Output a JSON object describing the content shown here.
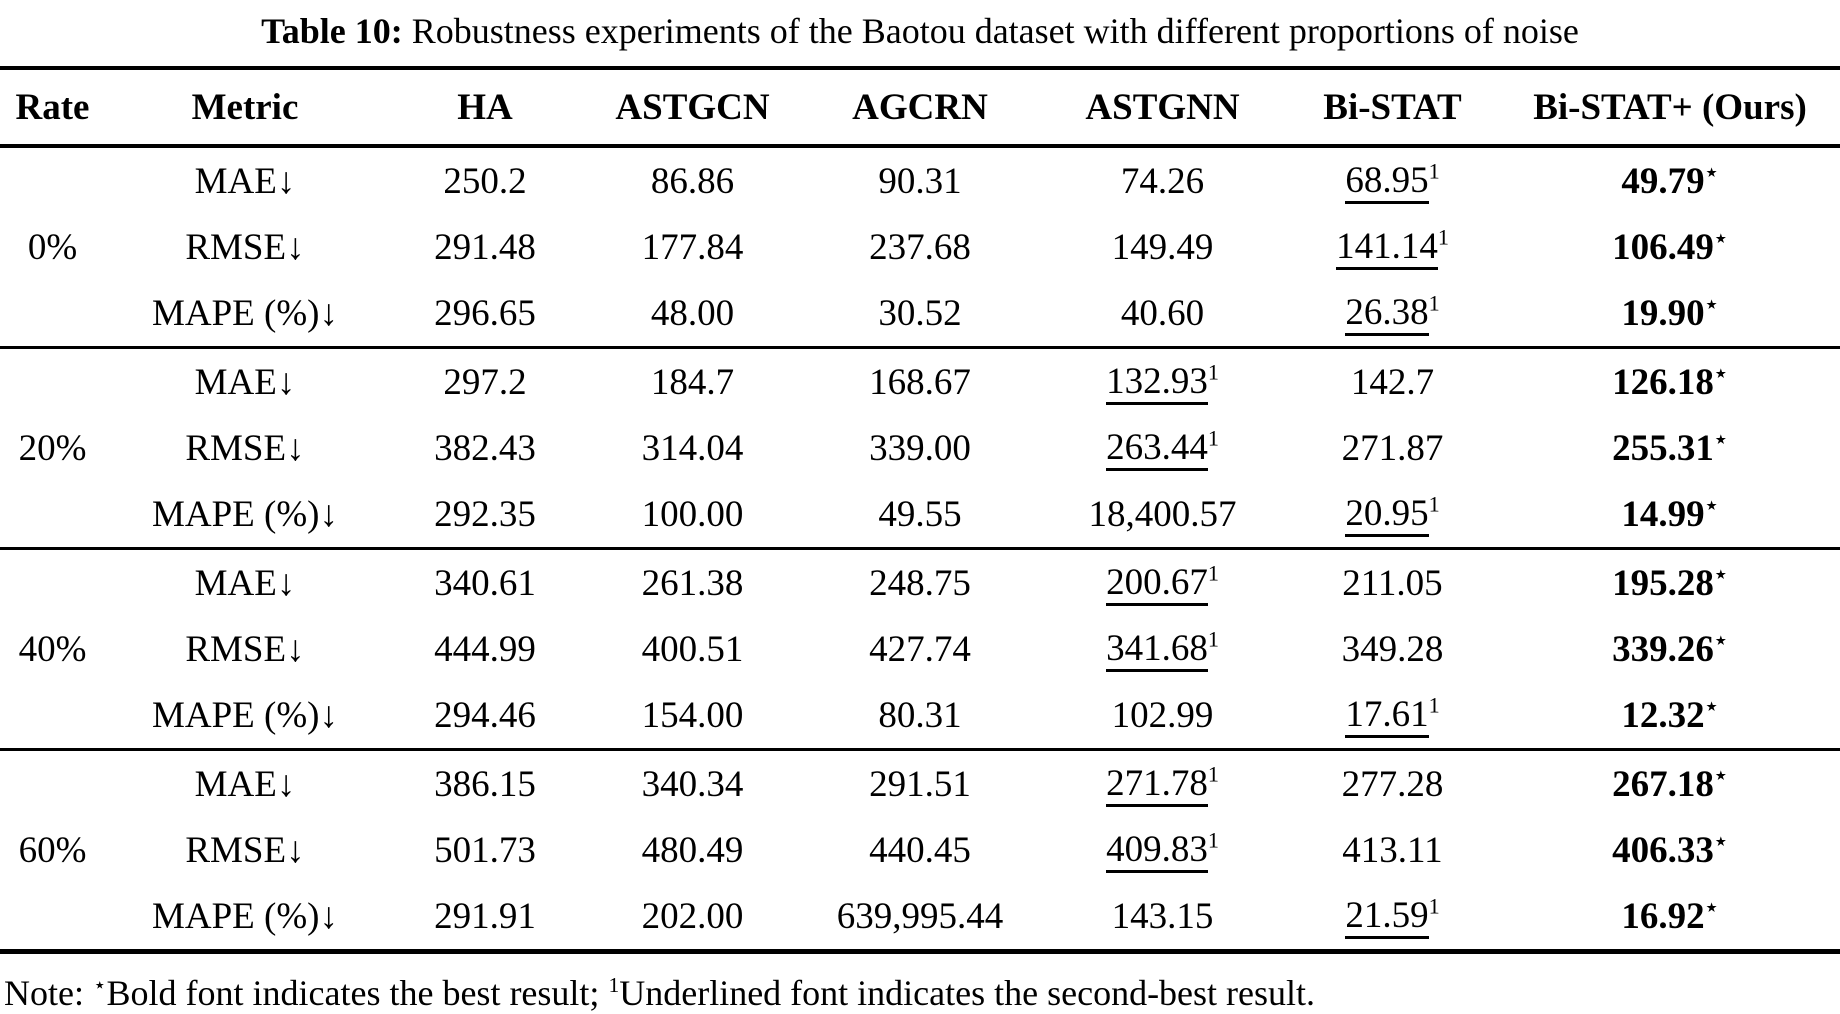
{
  "title": {
    "label": "Table 10:",
    "text": "Robustness experiments of the Baotou dataset with different proportions of noise"
  },
  "columns": [
    "Rate",
    "Metric",
    "HA",
    "ASTGCN",
    "AGCRN",
    "ASTGNN",
    "Bi-STAT",
    "Bi-STAT+ (Ours)"
  ],
  "marks": {
    "best_suffix": "⋆",
    "second_suffix": "1"
  },
  "groups": [
    {
      "rate": "0%",
      "rows": [
        {
          "metric": "MAE↓",
          "cells": [
            {
              "t": "250.2"
            },
            {
              "t": "86.86"
            },
            {
              "t": "90.31"
            },
            {
              "t": "74.26"
            },
            {
              "t": "68.95",
              "m": "second"
            },
            {
              "t": "49.79",
              "m": "best"
            }
          ]
        },
        {
          "metric": "RMSE↓",
          "cells": [
            {
              "t": "291.48"
            },
            {
              "t": "177.84"
            },
            {
              "t": "237.68"
            },
            {
              "t": "149.49"
            },
            {
              "t": "141.14",
              "m": "second"
            },
            {
              "t": "106.49",
              "m": "best"
            }
          ]
        },
        {
          "metric": "MAPE (%)↓",
          "cells": [
            {
              "t": "296.65"
            },
            {
              "t": "48.00"
            },
            {
              "t": "30.52"
            },
            {
              "t": "40.60"
            },
            {
              "t": "26.38",
              "m": "second"
            },
            {
              "t": "19.90",
              "m": "best"
            }
          ]
        }
      ]
    },
    {
      "rate": "20%",
      "rows": [
        {
          "metric": "MAE↓",
          "cells": [
            {
              "t": "297.2"
            },
            {
              "t": "184.7"
            },
            {
              "t": "168.67"
            },
            {
              "t": "132.93",
              "m": "second"
            },
            {
              "t": "142.7"
            },
            {
              "t": "126.18",
              "m": "best"
            }
          ]
        },
        {
          "metric": "RMSE↓",
          "cells": [
            {
              "t": "382.43"
            },
            {
              "t": "314.04"
            },
            {
              "t": "339.00"
            },
            {
              "t": "263.44",
              "m": "second"
            },
            {
              "t": "271.87"
            },
            {
              "t": "255.31",
              "m": "best"
            }
          ]
        },
        {
          "metric": "MAPE (%)↓",
          "cells": [
            {
              "t": "292.35"
            },
            {
              "t": "100.00"
            },
            {
              "t": "49.55"
            },
            {
              "t": "18,400.57"
            },
            {
              "t": "20.95",
              "m": "second"
            },
            {
              "t": "14.99",
              "m": "best"
            }
          ]
        }
      ]
    },
    {
      "rate": "40%",
      "rows": [
        {
          "metric": "MAE↓",
          "cells": [
            {
              "t": "340.61"
            },
            {
              "t": "261.38"
            },
            {
              "t": "248.75"
            },
            {
              "t": "200.67",
              "m": "second"
            },
            {
              "t": "211.05"
            },
            {
              "t": "195.28",
              "m": "best"
            }
          ]
        },
        {
          "metric": "RMSE↓",
          "cells": [
            {
              "t": "444.99"
            },
            {
              "t": "400.51"
            },
            {
              "t": "427.74"
            },
            {
              "t": "341.68",
              "m": "second"
            },
            {
              "t": "349.28"
            },
            {
              "t": "339.26",
              "m": "best"
            }
          ]
        },
        {
          "metric": "MAPE (%)↓",
          "cells": [
            {
              "t": "294.46"
            },
            {
              "t": "154.00"
            },
            {
              "t": "80.31"
            },
            {
              "t": "102.99"
            },
            {
              "t": "17.61",
              "m": "second"
            },
            {
              "t": "12.32",
              "m": "best"
            }
          ]
        }
      ]
    },
    {
      "rate": "60%",
      "rows": [
        {
          "metric": "MAE↓",
          "cells": [
            {
              "t": "386.15"
            },
            {
              "t": "340.34"
            },
            {
              "t": "291.51"
            },
            {
              "t": "271.78",
              "m": "second"
            },
            {
              "t": "277.28"
            },
            {
              "t": "267.18",
              "m": "best"
            }
          ]
        },
        {
          "metric": "RMSE↓",
          "cells": [
            {
              "t": "501.73"
            },
            {
              "t": "480.49"
            },
            {
              "t": "440.45"
            },
            {
              "t": "409.83",
              "m": "second"
            },
            {
              "t": "413.11"
            },
            {
              "t": "406.33",
              "m": "best"
            }
          ]
        },
        {
          "metric": "MAPE (%)↓",
          "cells": [
            {
              "t": "291.91"
            },
            {
              "t": "202.00"
            },
            {
              "t": "639,995.44"
            },
            {
              "t": "143.15"
            },
            {
              "t": "21.59",
              "m": "second"
            },
            {
              "t": "16.92",
              "m": "best"
            }
          ]
        }
      ]
    }
  ],
  "note": {
    "prefix": "Note: ",
    "star": "⋆",
    "best_text": "Bold font indicates the best result; ",
    "one": "1",
    "second_text": "Underlined font indicates the second-best result."
  }
}
